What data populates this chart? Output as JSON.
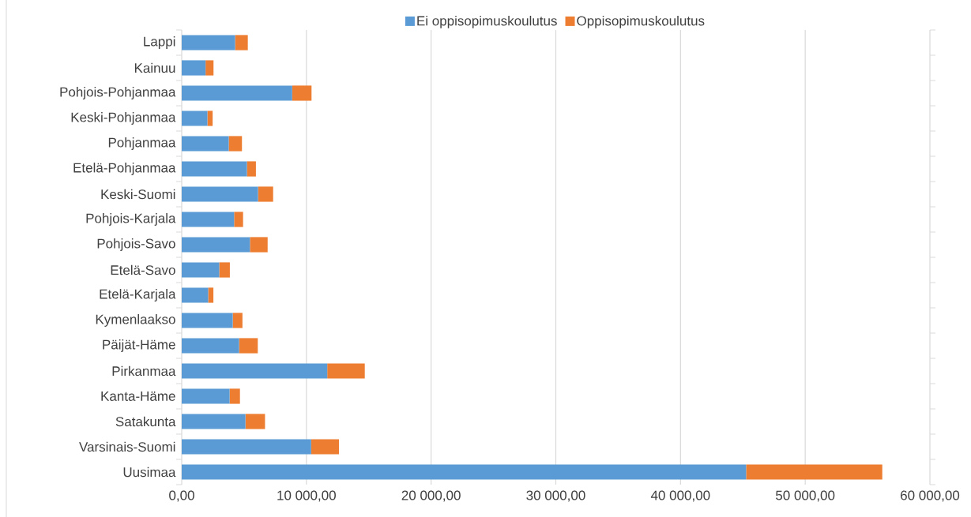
{
  "chart_data": {
    "type": "bar",
    "orientation": "horizontal",
    "stacked": true,
    "categories": [
      "Lappi",
      "Kainuu",
      "Pohjois-Pohjanmaa",
      "Keski-Pohjanmaa",
      "Pohjanmaa",
      "Etelä-Pohjanmaa",
      "Keski-Suomi",
      "Pohjois-Karjala",
      "Pohjois-Savo",
      "Etelä-Savo",
      "Etelä-Karjala",
      "Kymenlaakso",
      "Päijät-Häme",
      "Pirkanmaa",
      "Kanta-Häme",
      "Satakunta",
      "Varsinais-Suomi",
      "Uusimaa"
    ],
    "series": [
      {
        "name": "Ei oppisopimuskoulutus",
        "color": "#5b9bd5",
        "values": [
          4280,
          1910,
          8860,
          2060,
          3770,
          5230,
          6120,
          4200,
          5470,
          3010,
          2120,
          4090,
          4600,
          11670,
          3840,
          5110,
          10380,
          45260
        ]
      },
      {
        "name": "Oppisopimuskoulutus",
        "color": "#ed7d31",
        "values": [
          1020,
          640,
          1550,
          420,
          1060,
          720,
          1210,
          720,
          1420,
          850,
          420,
          780,
          1500,
          3010,
          830,
          1570,
          2230,
          10920
        ]
      }
    ],
    "xlim": [
      0,
      60000
    ],
    "xticks": [
      {
        "value": 0,
        "label": "0,00"
      },
      {
        "value": 10000,
        "label": "10 000,00"
      },
      {
        "value": 20000,
        "label": "20 000,00"
      },
      {
        "value": 30000,
        "label": "30 000,00"
      },
      {
        "value": 40000,
        "label": "40 000,00"
      },
      {
        "value": 50000,
        "label": "50 000,00"
      },
      {
        "value": 60000,
        "label": "60 000,00"
      }
    ],
    "grid": "x",
    "legend": "top"
  }
}
